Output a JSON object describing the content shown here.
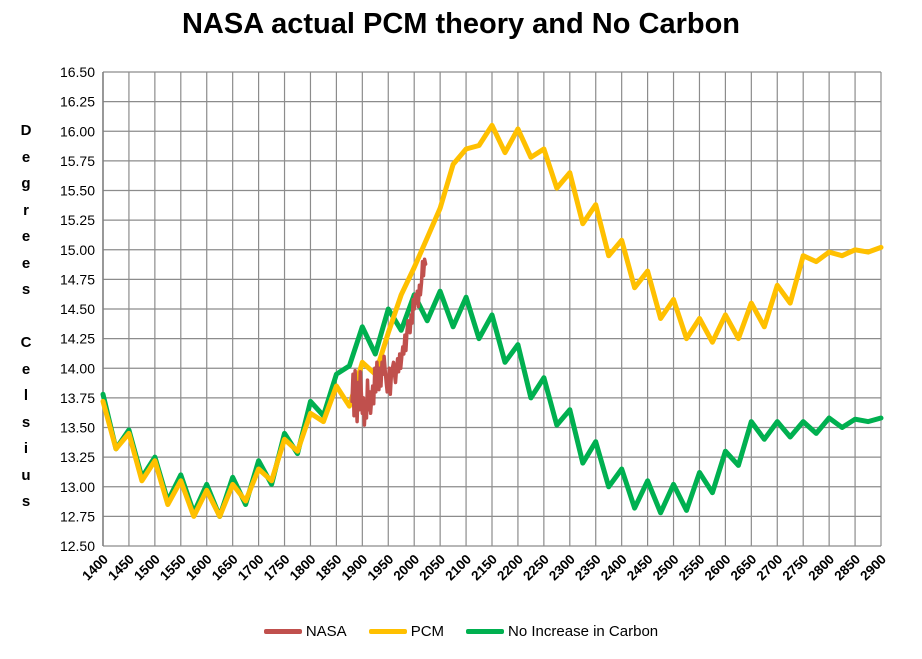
{
  "chart_data": {
    "type": "line",
    "title": "NASA actual PCM theory and No Carbon",
    "ylabel": "Degrees Celsius",
    "xlabel": "",
    "xlim": [
      1400,
      2900
    ],
    "ylim": [
      12.5,
      16.5
    ],
    "grid": true,
    "legend_position": "bottom",
    "x_ticks": [
      "1400",
      "1450",
      "1500",
      "1550",
      "1600",
      "1650",
      "1700",
      "1750",
      "1800",
      "1850",
      "1900",
      "1950",
      "2000",
      "2050",
      "2100",
      "2150",
      "2200",
      "2250",
      "2300",
      "2350",
      "2400",
      "2450",
      "2500",
      "2550",
      "2600",
      "2650",
      "2700",
      "2750",
      "2800",
      "2850",
      "2900"
    ],
    "y_ticks": [
      "12.50",
      "12.75",
      "13.00",
      "13.25",
      "13.50",
      "13.75",
      "14.00",
      "14.25",
      "14.50",
      "14.75",
      "15.00",
      "15.25",
      "15.50",
      "15.75",
      "16.00",
      "16.25",
      "16.50"
    ],
    "series": [
      {
        "name": "NASA",
        "color": "#c0504d",
        "x": [
          1880,
          1882,
          1884,
          1886,
          1888,
          1890,
          1892,
          1894,
          1896,
          1898,
          1900,
          1902,
          1904,
          1906,
          1908,
          1910,
          1912,
          1914,
          1916,
          1918,
          1920,
          1922,
          1924,
          1926,
          1928,
          1930,
          1932,
          1934,
          1936,
          1938,
          1940,
          1942,
          1944,
          1946,
          1948,
          1950,
          1952,
          1954,
          1956,
          1958,
          1960,
          1962,
          1964,
          1966,
          1968,
          1970,
          1972,
          1974,
          1976,
          1978,
          1980,
          1982,
          1984,
          1986,
          1988,
          1990,
          1992,
          1994,
          1996,
          1998,
          2000,
          2002,
          2004,
          2006,
          2008,
          2010,
          2012,
          2014,
          2016,
          2018,
          2020,
          2022
        ],
        "y": [
          13.72,
          13.95,
          13.6,
          13.98,
          13.78,
          13.55,
          13.88,
          13.65,
          13.97,
          13.8,
          13.62,
          13.75,
          13.52,
          13.7,
          13.58,
          13.9,
          13.65,
          13.8,
          13.62,
          13.75,
          13.85,
          13.7,
          14.0,
          13.8,
          14.05,
          13.9,
          13.82,
          14.0,
          13.85,
          14.05,
          13.95,
          14.1,
          13.98,
          13.88,
          13.8,
          13.85,
          14.0,
          13.78,
          13.95,
          14.0,
          14.05,
          13.95,
          13.88,
          14.0,
          14.08,
          13.97,
          14.12,
          14.0,
          14.1,
          14.18,
          14.12,
          14.28,
          14.15,
          14.3,
          14.4,
          14.35,
          14.3,
          14.45,
          14.38,
          14.58,
          14.5,
          14.62,
          14.55,
          14.65,
          14.52,
          14.7,
          14.62,
          14.72,
          14.9,
          14.78,
          14.92,
          14.88
        ]
      },
      {
        "name": "PCM",
        "color": "#ffc000",
        "x": [
          1400,
          1425,
          1450,
          1475,
          1500,
          1525,
          1550,
          1575,
          1600,
          1625,
          1650,
          1675,
          1700,
          1725,
          1750,
          1775,
          1800,
          1825,
          1850,
          1875,
          1900,
          1925,
          1950,
          1975,
          2000,
          2025,
          2050,
          2075,
          2100,
          2125,
          2150,
          2175,
          2200,
          2225,
          2250,
          2275,
          2300,
          2325,
          2350,
          2375,
          2400,
          2425,
          2450,
          2475,
          2500,
          2525,
          2550,
          2575,
          2600,
          2625,
          2650,
          2675,
          2700,
          2725,
          2750,
          2775,
          2800,
          2825,
          2850,
          2875,
          2900
        ],
        "y": [
          13.72,
          13.32,
          13.45,
          13.05,
          13.22,
          12.85,
          13.05,
          12.75,
          12.97,
          12.75,
          13.02,
          12.88,
          13.15,
          13.05,
          13.4,
          13.3,
          13.62,
          13.55,
          13.85,
          13.68,
          14.05,
          13.95,
          14.3,
          14.62,
          14.85,
          15.1,
          15.35,
          15.72,
          15.85,
          15.88,
          16.05,
          15.82,
          16.02,
          15.78,
          15.85,
          15.52,
          15.65,
          15.22,
          15.38,
          14.95,
          15.08,
          14.68,
          14.82,
          14.42,
          14.58,
          14.25,
          14.42,
          14.22,
          14.45,
          14.25,
          14.55,
          14.35,
          14.7,
          14.55,
          14.95,
          14.9,
          14.98,
          14.95,
          15.0,
          14.98,
          15.02
        ]
      },
      {
        "name": "No Increase in Carbon",
        "color": "#00b050",
        "x": [
          1400,
          1425,
          1450,
          1475,
          1500,
          1525,
          1550,
          1575,
          1600,
          1625,
          1650,
          1675,
          1700,
          1725,
          1750,
          1775,
          1800,
          1825,
          1850,
          1875,
          1900,
          1925,
          1950,
          1975,
          2000,
          2025,
          2050,
          2075,
          2100,
          2125,
          2150,
          2175,
          2200,
          2225,
          2250,
          2275,
          2300,
          2325,
          2350,
          2375,
          2400,
          2425,
          2450,
          2475,
          2500,
          2525,
          2550,
          2575,
          2600,
          2625,
          2650,
          2675,
          2700,
          2725,
          2750,
          2775,
          2800,
          2825,
          2850,
          2875,
          2900
        ],
        "y": [
          13.78,
          13.32,
          13.48,
          13.08,
          13.25,
          12.88,
          13.1,
          12.78,
          13.02,
          12.75,
          13.08,
          12.85,
          13.22,
          13.02,
          13.45,
          13.28,
          13.72,
          13.6,
          13.95,
          14.02,
          14.35,
          14.12,
          14.5,
          14.32,
          14.62,
          14.4,
          14.65,
          14.35,
          14.6,
          14.25,
          14.45,
          14.05,
          14.2,
          13.75,
          13.92,
          13.52,
          13.65,
          13.2,
          13.38,
          13.0,
          13.15,
          12.82,
          13.05,
          12.78,
          13.02,
          12.8,
          13.12,
          12.95,
          13.3,
          13.18,
          13.55,
          13.4,
          13.55,
          13.42,
          13.55,
          13.45,
          13.58,
          13.5,
          13.57,
          13.55,
          13.58
        ]
      }
    ]
  }
}
